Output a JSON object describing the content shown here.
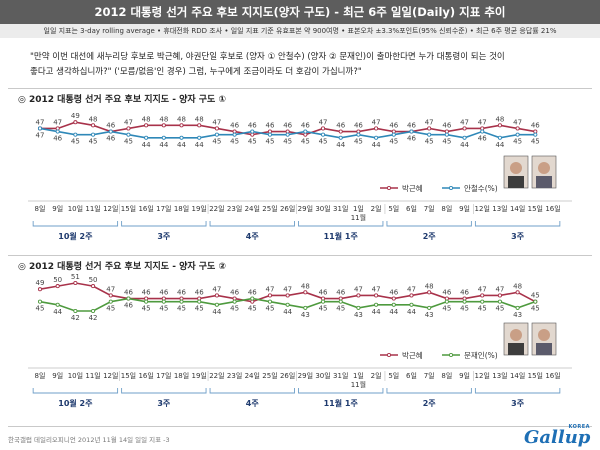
{
  "header": {
    "title": "2012 대통령 선거 주요 후보 지지도(양자 구도) - 최근 6주 일일(Daily) 지표 추이",
    "subtitle": "일일 지표는 3-day rolling average • 휴대전화 RDD 조사 • 일일 지표 기준 유효표본 약 900여명 • 표본오차 ±3.3%포인트(95% 신뢰수준) • 최근 6주 평균 응답률 21%"
  },
  "question": {
    "line1": "\"만약 이번 대선에 새누리당 후보로 박근혜, 야권단일 후보로 (양자 ① 안철수) (양자 ② 문재인)이 출마한다면 누가 대통령이 되는 것이",
    "line2": "좋다고 생각하십니까?\" ('모름/없음'인 경우) 그럼, 누구에게 조금이라도 더 호감이 가십니까?\""
  },
  "footer": {
    "text": "한국갤럽 데일리오피니언 2012년 11월 14일 일일 지표 -3"
  },
  "logo": {
    "small": "KOREA",
    "main": "Gallup"
  },
  "colors": {
    "park": "#a8324a",
    "ahn": "#2f88b8",
    "moon": "#4e9a3e",
    "header_bg": "#5d5d5d"
  },
  "chart_data": [
    {
      "type": "line",
      "title": "2012 대통령 선거 주요 후보 지지도 - 양자 구도 ①",
      "x": [
        "8일",
        "9일",
        "10일",
        "11일",
        "12일",
        "15일",
        "16일",
        "17일",
        "18일",
        "19일",
        "22일",
        "23일",
        "24일",
        "25일",
        "26일",
        "29일",
        "30일",
        "31일",
        "1일",
        "2일",
        "5일",
        "6일",
        "7일",
        "8일",
        "9일",
        "12일",
        "13일",
        "14일",
        "15일",
        "16일"
      ],
      "x_extra": {
        "18": "11월"
      },
      "series": [
        {
          "name": "박근혜",
          "color": "#a8324a",
          "values": [
            47,
            47,
            49,
            48,
            46,
            47,
            48,
            48,
            48,
            48,
            47,
            46,
            45,
            46,
            46,
            45,
            47,
            46,
            46,
            47,
            46,
            46,
            47,
            46,
            47,
            47,
            48,
            47,
            46,
            null
          ]
        },
        {
          "name": "안철수(%)",
          "color": "#2f88b8",
          "values": [
            47,
            46,
            45,
            45,
            46,
            45,
            44,
            44,
            44,
            44,
            45,
            45,
            46,
            45,
            45,
            46,
            45,
            44,
            45,
            44,
            45,
            46,
            45,
            45,
            44,
            46,
            44,
            45,
            45,
            null
          ]
        }
      ],
      "weeks": [
        "10월 2주",
        "3주",
        "4주",
        "11월 1주",
        "2주",
        "3주"
      ],
      "week_spans": [
        [
          0,
          4
        ],
        [
          5,
          9
        ],
        [
          10,
          14
        ],
        [
          15,
          19
        ],
        [
          20,
          24
        ],
        [
          25,
          29
        ]
      ]
    },
    {
      "type": "line",
      "title": "2012 대통령 선거 주요 후보 지지도 - 양자 구도 ②",
      "x": [
        "8일",
        "9일",
        "10일",
        "11일",
        "12일",
        "15일",
        "16일",
        "17일",
        "18일",
        "19일",
        "22일",
        "23일",
        "24일",
        "25일",
        "26일",
        "29일",
        "30일",
        "31일",
        "1일",
        "2일",
        "5일",
        "6일",
        "7일",
        "8일",
        "9일",
        "12일",
        "13일",
        "14일",
        "15일",
        "16일"
      ],
      "x_extra": {
        "18": "11월"
      },
      "series": [
        {
          "name": "박근혜",
          "color": "#a8324a",
          "values": [
            49,
            50,
            51,
            50,
            47,
            46,
            46,
            46,
            46,
            46,
            47,
            46,
            45,
            47,
            47,
            48,
            46,
            46,
            47,
            47,
            46,
            47,
            48,
            46,
            46,
            47,
            47,
            48,
            45,
            null
          ]
        },
        {
          "name": "문재인(%)",
          "color": "#4e9a3e",
          "values": [
            45,
            44,
            42,
            42,
            45,
            46,
            45,
            45,
            45,
            45,
            44,
            45,
            46,
            45,
            44,
            43,
            45,
            45,
            43,
            44,
            44,
            44,
            43,
            45,
            45,
            45,
            45,
            43,
            45,
            null
          ]
        }
      ],
      "weeks": [
        "10월 2주",
        "3주",
        "4주",
        "11월 1주",
        "2주",
        "3주"
      ],
      "week_spans": [
        [
          0,
          4
        ],
        [
          5,
          9
        ],
        [
          10,
          14
        ],
        [
          15,
          19
        ],
        [
          20,
          24
        ],
        [
          25,
          29
        ]
      ]
    }
  ]
}
